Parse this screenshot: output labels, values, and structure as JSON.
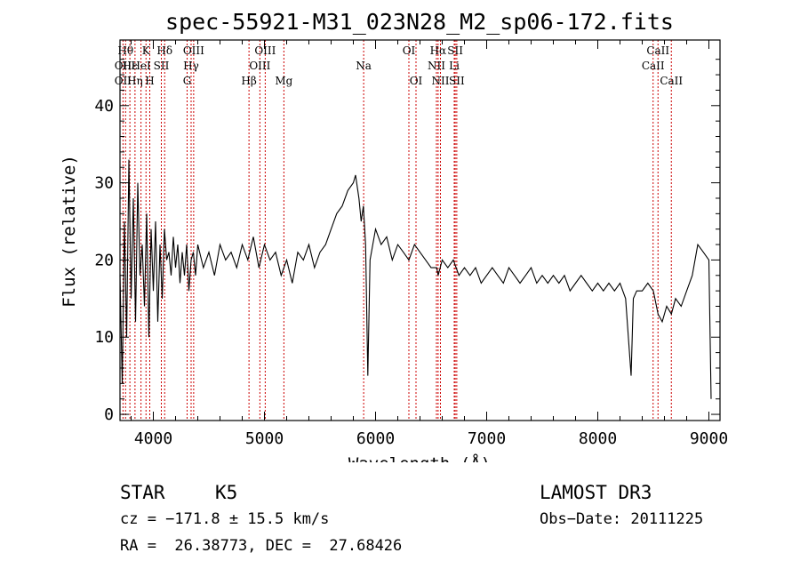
{
  "chart_data": {
    "type": "line",
    "title": "spec-55921-M31_023N28_M2_sp06-172.fits",
    "xlabel": "Wavelength (Å)",
    "ylabel": "Flux (relative)",
    "xlim": [
      3700,
      9100
    ],
    "ylim": [
      -0.8,
      48.5
    ],
    "xticks": [
      4000,
      5000,
      6000,
      7000,
      8000,
      9000
    ],
    "yticks": [
      0,
      10,
      20,
      30,
      40
    ],
    "series": [
      {
        "name": "flux",
        "x": [
          3700,
          3720,
          3740,
          3760,
          3780,
          3800,
          3820,
          3840,
          3860,
          3880,
          3900,
          3920,
          3940,
          3960,
          3980,
          4000,
          4020,
          4040,
          4060,
          4080,
          4100,
          4120,
          4140,
          4160,
          4180,
          4200,
          4220,
          4240,
          4260,
          4280,
          4300,
          4320,
          4340,
          4360,
          4380,
          4400,
          4450,
          4500,
          4550,
          4600,
          4650,
          4700,
          4750,
          4800,
          4850,
          4900,
          4950,
          5000,
          5050,
          5100,
          5150,
          5200,
          5250,
          5300,
          5350,
          5400,
          5450,
          5500,
          5550,
          5600,
          5650,
          5700,
          5750,
          5800,
          5820,
          5850,
          5870,
          5890,
          5910,
          5930,
          5950,
          6000,
          6050,
          6100,
          6150,
          6200,
          6250,
          6300,
          6350,
          6400,
          6450,
          6500,
          6550,
          6563,
          6600,
          6650,
          6700,
          6750,
          6800,
          6850,
          6900,
          6950,
          7000,
          7050,
          7100,
          7150,
          7200,
          7250,
          7300,
          7350,
          7400,
          7450,
          7500,
          7550,
          7600,
          7650,
          7700,
          7750,
          7800,
          7850,
          7900,
          7950,
          8000,
          8050,
          8100,
          8150,
          8200,
          8250,
          8300,
          8320,
          8350,
          8400,
          8450,
          8500,
          8542,
          8580,
          8620,
          8662,
          8700,
          8750,
          8800,
          8850,
          8900,
          8950,
          9000,
          9020
        ],
        "values": [
          18,
          4,
          25,
          10,
          33,
          15,
          28,
          12,
          30,
          18,
          22,
          14,
          26,
          10,
          24,
          16,
          25,
          12,
          22,
          15,
          24,
          20,
          21,
          18,
          23,
          19,
          22,
          17,
          21,
          18,
          22,
          16,
          20,
          21,
          18,
          22,
          19,
          21,
          18,
          22,
          20,
          21,
          19,
          22,
          20,
          23,
          19,
          22,
          20,
          21,
          18,
          20,
          17,
          21,
          20,
          22,
          19,
          21,
          22,
          24,
          26,
          27,
          29,
          30,
          31,
          28,
          25,
          27,
          22,
          5,
          20,
          24,
          22,
          23,
          20,
          22,
          21,
          20,
          22,
          21,
          20,
          19,
          19,
          18,
          20,
          19,
          20,
          18,
          19,
          18,
          19,
          17,
          18,
          19,
          18,
          17,
          19,
          18,
          17,
          18,
          19,
          17,
          18,
          17,
          18,
          17,
          18,
          16,
          17,
          18,
          17,
          16,
          17,
          16,
          17,
          16,
          17,
          15,
          5,
          15,
          16,
          16,
          17,
          16,
          13,
          12,
          14,
          13,
          15,
          14,
          16,
          18,
          22,
          21,
          20,
          2
        ]
      }
    ],
    "lines": [
      {
        "label": "OII",
        "x": 3727,
        "row": 2
      },
      {
        "label": "Hθ",
        "x": 3750,
        "row": 0
      },
      {
        "label": "OII",
        "x": 3727,
        "row": 1
      },
      {
        "label": "Hε",
        "x": 3789,
        "row": 1
      },
      {
        "label": "Hη",
        "x": 3835,
        "row": 2
      },
      {
        "label": "K",
        "x": 3934,
        "row": 0
      },
      {
        "label": "H",
        "x": 3968,
        "row": 2
      },
      {
        "label": "HeI",
        "x": 3889,
        "row": 1
      },
      {
        "label": "Hδ",
        "x": 4102,
        "row": 0
      },
      {
        "label": "SII",
        "x": 4072,
        "row": 1
      },
      {
        "label": "OIII",
        "x": 4363,
        "row": 0
      },
      {
        "label": "Hγ",
        "x": 4340,
        "row": 1
      },
      {
        "label": "G",
        "x": 4304,
        "row": 2
      },
      {
        "label": "OIII",
        "x": 5007,
        "row": 0
      },
      {
        "label": "OIII",
        "x": 4959,
        "row": 1
      },
      {
        "label": "Hβ",
        "x": 4861,
        "row": 2
      },
      {
        "label": "Mg",
        "x": 5175,
        "row": 2
      },
      {
        "label": "Na",
        "x": 5893,
        "row": 1
      },
      {
        "label": "OI",
        "x": 6300,
        "row": 0
      },
      {
        "label": "OI",
        "x": 6364,
        "row": 2
      },
      {
        "label": "Hα",
        "x": 6563,
        "row": 0
      },
      {
        "label": "NII",
        "x": 6548,
        "row": 1
      },
      {
        "label": "NII",
        "x": 6584,
        "row": 2
      },
      {
        "label": "SII",
        "x": 6717,
        "row": 0
      },
      {
        "label": "Li",
        "x": 6708,
        "row": 1
      },
      {
        "label": "SII",
        "x": 6731,
        "row": 2
      },
      {
        "label": "CaII",
        "x": 8542,
        "row": 0
      },
      {
        "label": "CaII",
        "x": 8498,
        "row": 1
      },
      {
        "label": "CaII",
        "x": 8662,
        "row": 2
      }
    ]
  },
  "footer": {
    "object_type": "STAR",
    "subclass": "K5",
    "survey": "LAMOST DR3",
    "cz": "cz = −171.8 ± 15.5 km/s",
    "obs_date": "Obs−Date: 20111225",
    "coords": "RA =  26.38773, DEC =  27.68426"
  },
  "colors": {
    "line_marker": "#cc0000",
    "spectrum": "#000000",
    "axes": "#000000"
  }
}
